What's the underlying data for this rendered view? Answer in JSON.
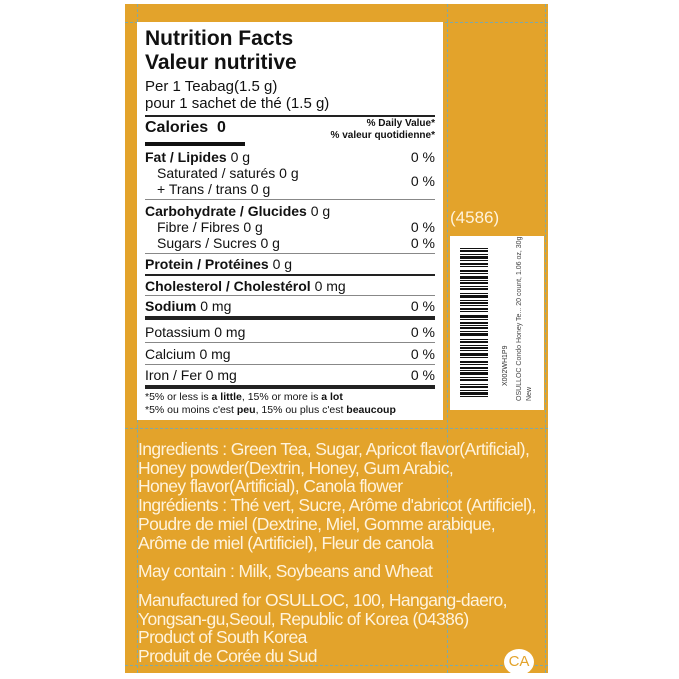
{
  "nutrition": {
    "title_en": "Nutrition Facts",
    "title_fr": "Valeur nutritive",
    "serving_en": "Per 1 Teabag(1.5 g)",
    "serving_fr": "pour 1 sachet de thé (1.5 g)",
    "calories_label": "Calories",
    "calories_value": "0",
    "dv_en": "% Daily Value*",
    "dv_fr": "% valeur quotidienne*",
    "rows": [
      {
        "label": "Fat / Lipides",
        "amount": "0 g",
        "dv": "0 %"
      },
      {
        "label": "Saturated / saturés 0 g"
      },
      {
        "label": "+ Trans / trans 0 g",
        "dv": "0 %"
      },
      {
        "label": "Carbohydrate / Glucides",
        "amount": "0 g"
      },
      {
        "label": "Fibre / Fibres 0 g",
        "dv": "0 %"
      },
      {
        "label": "Sugars / Sucres 0 g",
        "dv": "0 %"
      },
      {
        "label": "Protein / Protéines",
        "amount": "0 g"
      },
      {
        "label": "Cholesterol / Cholestérol",
        "amount": "0 mg"
      },
      {
        "label": "Sodium",
        "amount": "0 mg",
        "dv": "0 %"
      },
      {
        "label": "Potassium 0 mg",
        "dv": "0 %"
      },
      {
        "label": "Calcium 0 mg",
        "dv": "0 %"
      },
      {
        "label": "Iron / Fer 0 mg",
        "dv": "0 %"
      }
    ],
    "foot_en": [
      "*5% or less is ",
      "a little",
      ", 15% or more is ",
      "a lot"
    ],
    "foot_fr": [
      "*5% ou moins c'est ",
      "peu",
      ", 15% ou plus c'est ",
      "beaucoup"
    ]
  },
  "side_code": "(4586)",
  "barcode": {
    "code": "X002WH1P9",
    "desc": "OSULLOC Condo Honey Te... 20 count, 1.06 oz, 30g",
    "condition": "New"
  },
  "ingredients": [
    "Ingredients : Green Tea, Sugar, Apricot flavor(Artificial),",
    "Honey powder(Dextrin, Honey, Gum Arabic,",
    "Honey flavor(Artificial), Canola flower",
    "Ingrédients : Thé vert, Sucre, Arôme d'abricot (Artificiel),",
    "Poudre de miel (Dextrine, Miel, Gomme arabique,",
    "Arôme de miel (Artificiel), Fleur de canola"
  ],
  "allergens": "May contain : Milk, Soybeans and Wheat",
  "manufacturer": [
    "Manufactured for OSULLOC, 100, Hangang-daero,",
    "Yongsan-gu,Seoul, Republic of Korea (04386)",
    "Product of South Korea",
    "Produit de Corée du Sud"
  ],
  "badge": "CA",
  "colors": {
    "panel": "#e3a32b",
    "text": "#fff3dc"
  }
}
